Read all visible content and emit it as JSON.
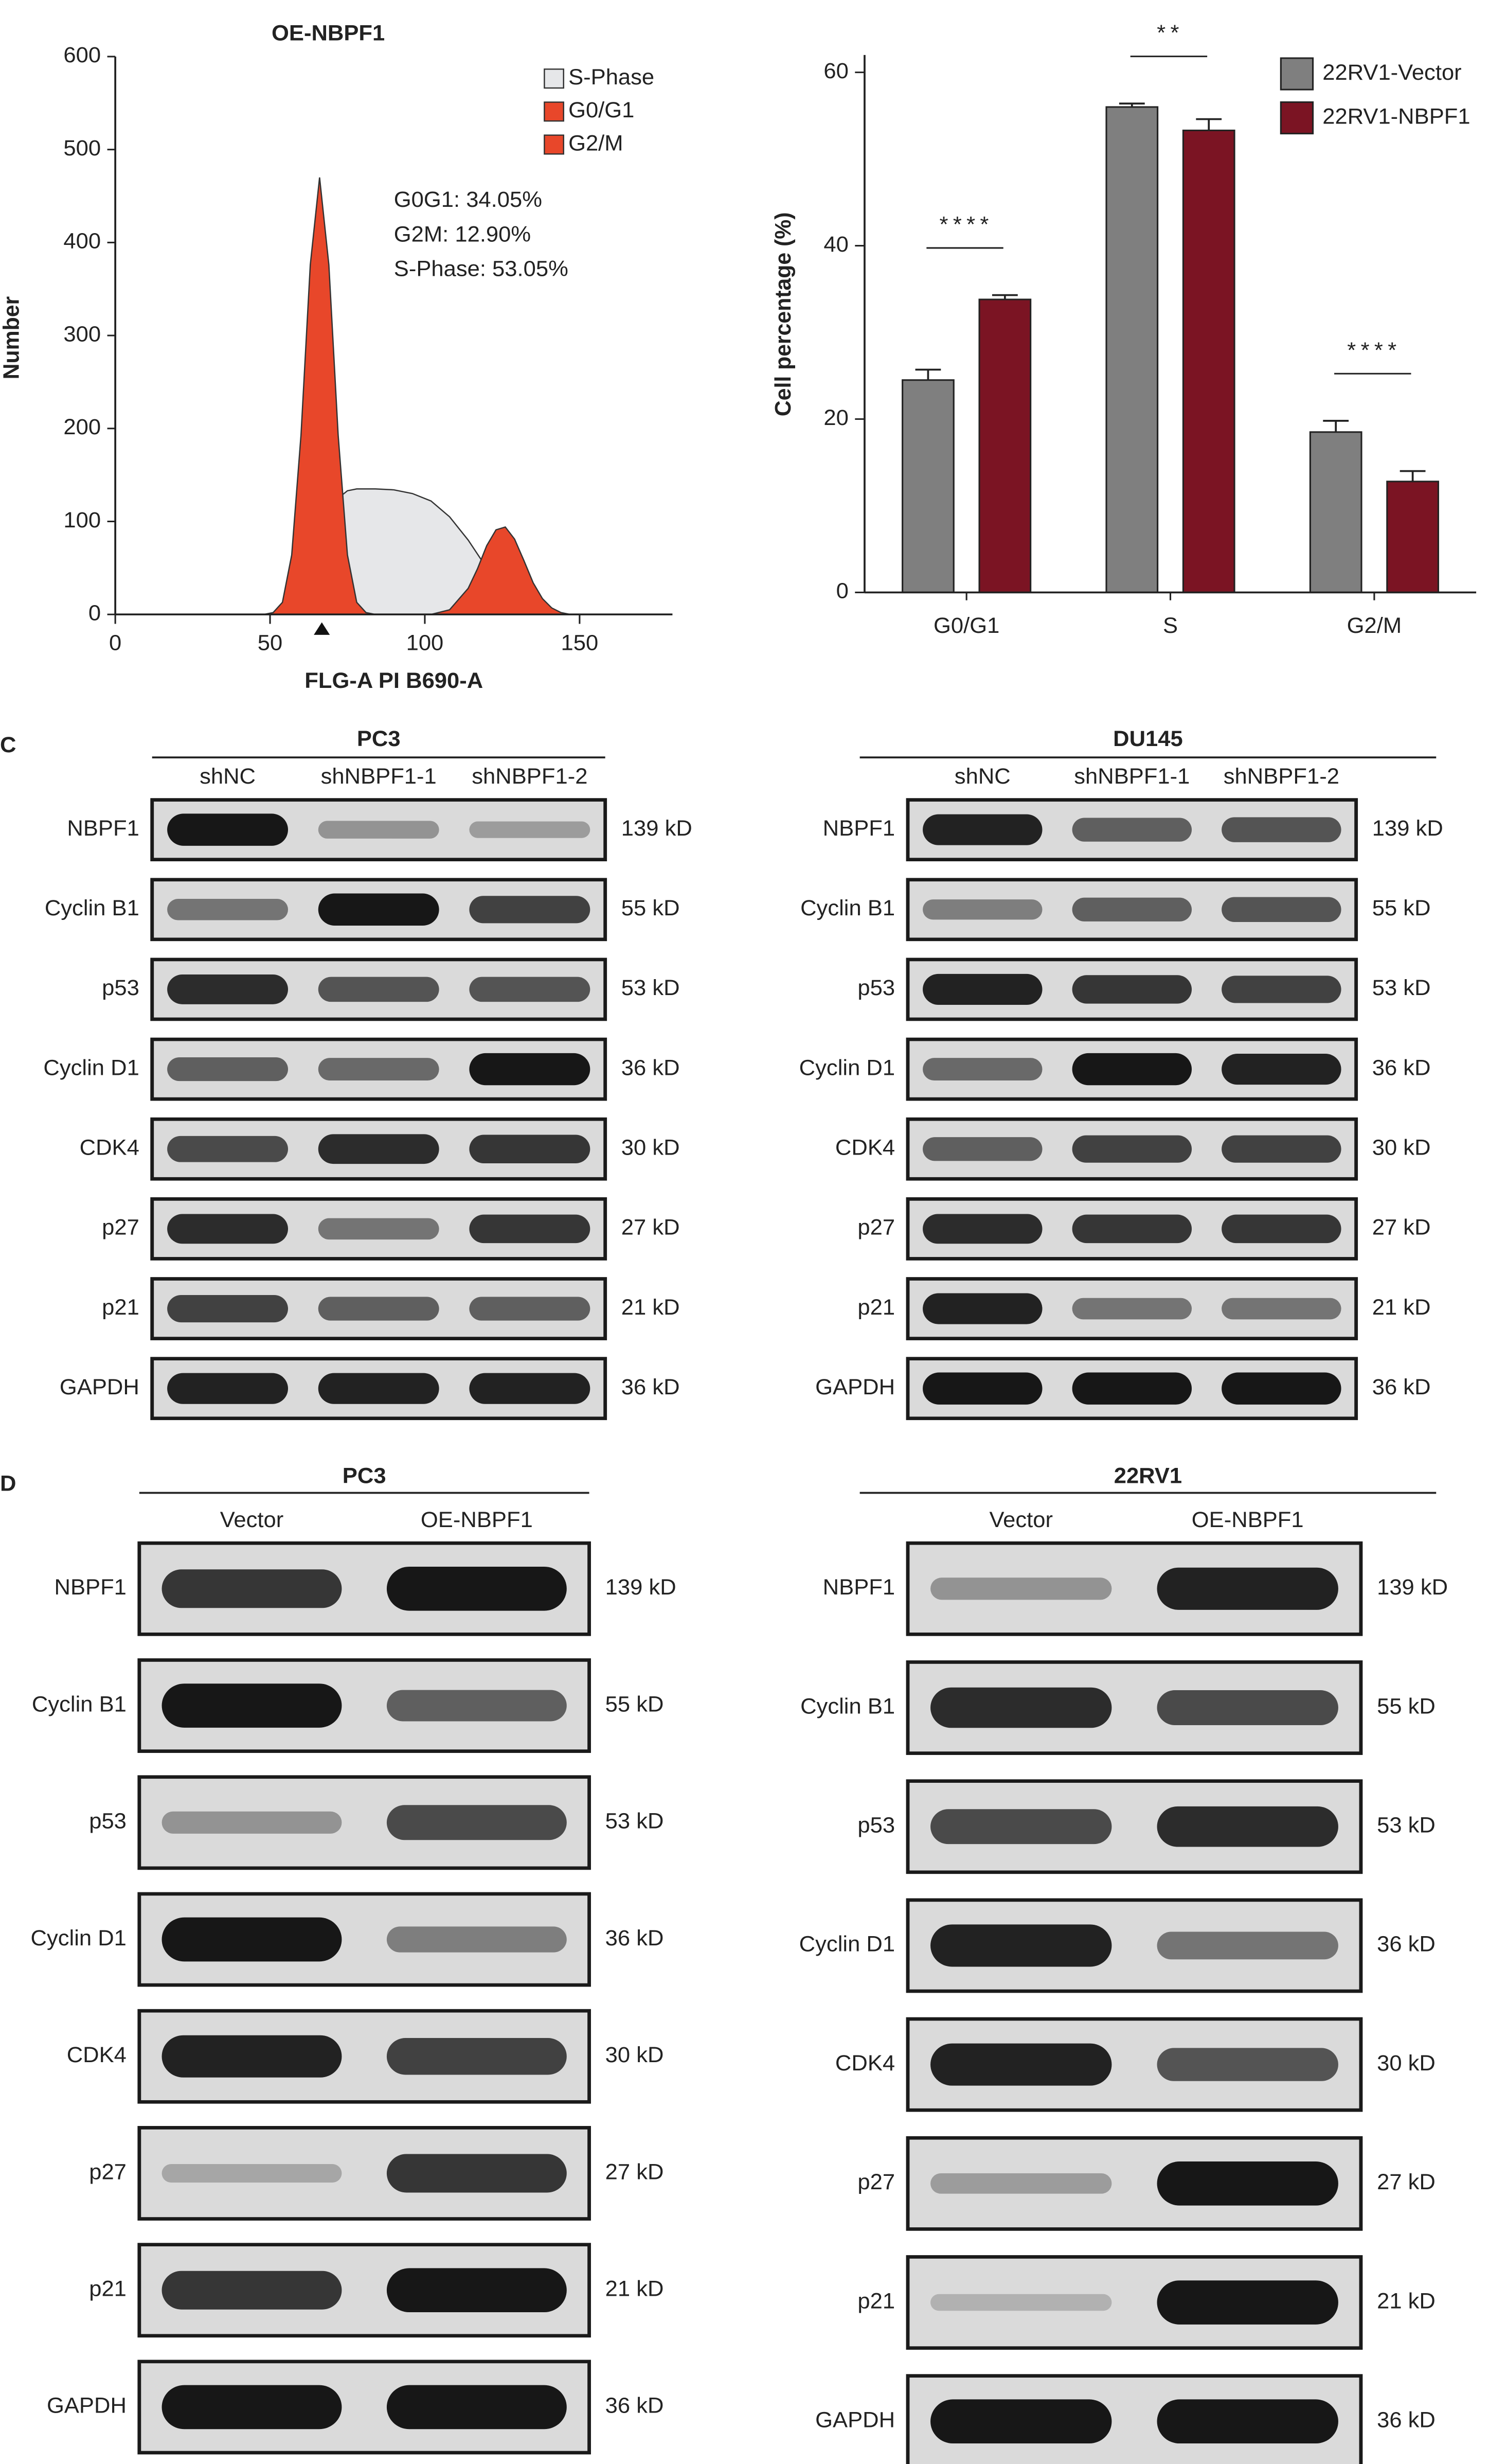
{
  "chart_data": [
    {
      "type": "area",
      "title": "OE-NBPF1",
      "xlabel": "FLG-A PI B690-A",
      "ylabel": "Number",
      "x": [
        48,
        51,
        54,
        57,
        60,
        63,
        66,
        69,
        72,
        75,
        78,
        81,
        84,
        90,
        96,
        102,
        108,
        114,
        117,
        120,
        123,
        126,
        129,
        132,
        135,
        138,
        141,
        144,
        147,
        150
      ],
      "series": [
        {
          "name": "S-Phase",
          "color": "#e6e7e9",
          "values": [
            0,
            0,
            0,
            0,
            0,
            20,
            60,
            100,
            125,
            133,
            135,
            135,
            135,
            134,
            130,
            122,
            105,
            80,
            65,
            50,
            38,
            27,
            18,
            10,
            5,
            2,
            0,
            0,
            0,
            0
          ]
        },
        {
          "name": "G0/G1",
          "color": "#e8472a",
          "values": [
            0,
            2,
            13,
            64,
            193,
            376,
            470,
            376,
            193,
            64,
            13,
            2,
            0,
            0,
            0,
            0,
            0,
            0,
            0,
            0,
            0,
            0,
            0,
            0,
            0,
            0,
            0,
            0,
            0,
            0
          ]
        },
        {
          "name": "G2/M",
          "color": "#e8472a",
          "values": [
            0,
            0,
            0,
            0,
            0,
            0,
            0,
            0,
            0,
            0,
            0,
            0,
            0,
            0,
            0,
            0,
            5,
            28,
            49,
            74,
            91,
            94,
            81,
            58,
            34,
            17,
            7,
            2,
            0,
            0
          ]
        }
      ],
      "annotations": [
        "G0G1: 34.05%",
        "G2M: 12.90%",
        "S-Phase: 53.05%"
      ],
      "xlim": [
        0,
        180
      ],
      "xticks": [
        0,
        50,
        100,
        150
      ],
      "ylim": [
        0,
        600
      ],
      "yticks": [
        0,
        100,
        200,
        300,
        400,
        500,
        600
      ]
    },
    {
      "type": "bar",
      "ylabel": "Cell percentage (%)",
      "categories": [
        "G0/G1",
        "S",
        "G2/M"
      ],
      "series": [
        {
          "name": "22RV1-Vector",
          "color": "#7f7f7f",
          "values": [
            24.5,
            56,
            18.5
          ],
          "errors": [
            1.2,
            0.4,
            1.3
          ]
        },
        {
          "name": "22RV1-NBPF1",
          "color": "#7b1423",
          "values": [
            33.8,
            53.3,
            12.8
          ],
          "errors": [
            0.5,
            1.3,
            1.2
          ]
        }
      ],
      "significance": [
        "****",
        "**",
        "****"
      ],
      "ylim": [
        0,
        62
      ],
      "yticks": [
        0,
        20,
        40,
        60
      ]
    }
  ],
  "blots": [
    {
      "panel": "C",
      "groups": [
        {
          "title": "PC3",
          "lanes": [
            "shNC",
            "shNBPF1-1",
            "shNBPF1-2"
          ],
          "rows": [
            {
              "protein": "NBPF1",
              "size": "139 kD",
              "intensity": [
                0.95,
                0.35,
                0.3
              ]
            },
            {
              "protein": "Cyclin B1",
              "size": "55 kD",
              "intensity": [
                0.5,
                0.95,
                0.75
              ]
            },
            {
              "protein": "p53",
              "size": "53 kD",
              "intensity": [
                0.85,
                0.65,
                0.65
              ]
            },
            {
              "protein": "Cyclin D1",
              "size": "36 kD",
              "intensity": [
                0.6,
                0.55,
                0.95
              ]
            },
            {
              "protein": "CDK4",
              "size": "30 kD",
              "intensity": [
                0.7,
                0.85,
                0.8
              ]
            },
            {
              "protein": "p27",
              "size": "27 kD",
              "intensity": [
                0.85,
                0.5,
                0.8
              ]
            },
            {
              "protein": "p21",
              "size": "21 kD",
              "intensity": [
                0.75,
                0.6,
                0.6
              ]
            },
            {
              "protein": "GAPDH",
              "size": "36 kD",
              "intensity": [
                0.9,
                0.9,
                0.9
              ]
            }
          ]
        },
        {
          "title": "DU145",
          "lanes": [
            "shNC",
            "shNBPF1-1",
            "shNBPF1-2"
          ],
          "rows": [
            {
              "protein": "NBPF1",
              "size": "139 kD",
              "intensity": [
                0.9,
                0.6,
                0.65
              ]
            },
            {
              "protein": "Cyclin B1",
              "size": "55 kD",
              "intensity": [
                0.45,
                0.6,
                0.65
              ]
            },
            {
              "protein": "p53",
              "size": "53 kD",
              "intensity": [
                0.9,
                0.8,
                0.75
              ]
            },
            {
              "protein": "Cyclin D1",
              "size": "36 kD",
              "intensity": [
                0.55,
                0.95,
                0.9
              ]
            },
            {
              "protein": "CDK4",
              "size": "30 kD",
              "intensity": [
                0.6,
                0.75,
                0.75
              ]
            },
            {
              "protein": "p27",
              "size": "27 kD",
              "intensity": [
                0.85,
                0.8,
                0.8
              ]
            },
            {
              "protein": "p21",
              "size": "21 kD",
              "intensity": [
                0.9,
                0.5,
                0.5
              ]
            },
            {
              "protein": "GAPDH",
              "size": "36 kD",
              "intensity": [
                0.95,
                0.95,
                0.95
              ]
            }
          ]
        }
      ]
    },
    {
      "panel": "D",
      "groups": [
        {
          "title": "PC3",
          "lanes": [
            "Vector",
            "OE-NBPF1"
          ],
          "rows": [
            {
              "protein": "NBPF1",
              "size": "139 kD",
              "intensity": [
                0.8,
                0.95
              ]
            },
            {
              "protein": "Cyclin B1",
              "size": "55 kD",
              "intensity": [
                0.95,
                0.6
              ]
            },
            {
              "protein": "p53",
              "size": "53 kD",
              "intensity": [
                0.35,
                0.7
              ]
            },
            {
              "protein": "Cyclin D1",
              "size": "36 kD",
              "intensity": [
                0.95,
                0.45
              ]
            },
            {
              "protein": "CDK4",
              "size": "30 kD",
              "intensity": [
                0.9,
                0.75
              ]
            },
            {
              "protein": "p27",
              "size": "27 kD",
              "intensity": [
                0.25,
                0.8
              ]
            },
            {
              "protein": "p21",
              "size": "21 kD",
              "intensity": [
                0.8,
                0.95
              ]
            },
            {
              "protein": "GAPDH",
              "size": "36 kD",
              "intensity": [
                0.95,
                0.95
              ]
            }
          ]
        },
        {
          "title": "22RV1",
          "lanes": [
            "Vector",
            "OE-NBPF1"
          ],
          "rows": [
            {
              "protein": "NBPF1",
              "size": "139 kD",
              "intensity": [
                0.35,
                0.9
              ]
            },
            {
              "protein": "Cyclin B1",
              "size": "55 kD",
              "intensity": [
                0.85,
                0.7
              ]
            },
            {
              "protein": "p53",
              "size": "53 kD",
              "intensity": [
                0.7,
                0.85
              ]
            },
            {
              "protein": "Cyclin D1",
              "size": "36 kD",
              "intensity": [
                0.9,
                0.5
              ]
            },
            {
              "protein": "CDK4",
              "size": "30 kD",
              "intensity": [
                0.9,
                0.65
              ]
            },
            {
              "protein": "p27",
              "size": "27 kD",
              "intensity": [
                0.3,
                0.95
              ]
            },
            {
              "protein": "p21",
              "size": "21 kD",
              "intensity": [
                0.2,
                0.95
              ]
            },
            {
              "protein": "GAPDH",
              "size": "36 kD",
              "intensity": [
                0.95,
                0.95
              ]
            }
          ]
        }
      ]
    }
  ]
}
